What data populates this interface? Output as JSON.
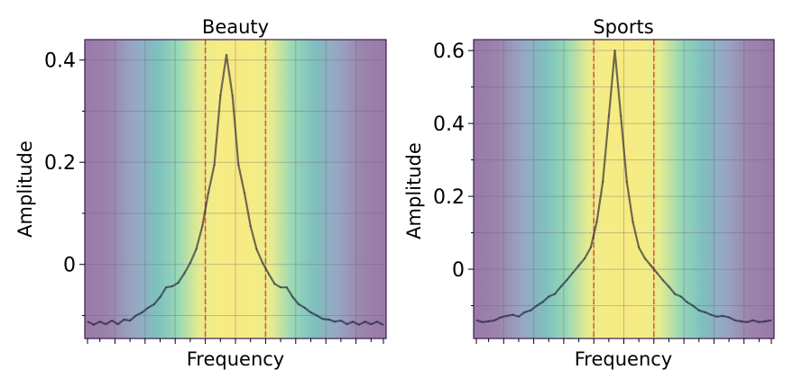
{
  "chart_data": [
    {
      "type": "line",
      "title": "Beauty",
      "xlabel": "Frequency",
      "ylabel": "Amplitude",
      "xlim": [
        -50,
        50
      ],
      "ylim": [
        -0.145,
        0.44
      ],
      "yticks": [
        0,
        0.2,
        0.4
      ],
      "ytick_labels": [
        "0",
        "0.2",
        "0.4"
      ],
      "grid": true,
      "background": "viridis-centered-gradient",
      "band_lines": [
        -10,
        10
      ],
      "x": [
        -49,
        -47,
        -45,
        -43,
        -41,
        -39,
        -37,
        -35,
        -33,
        -31,
        -29,
        -27,
        -25,
        -23,
        -21,
        -19,
        -17,
        -15,
        -13,
        -11,
        -9,
        -7,
        -5,
        -3,
        -1,
        1,
        3,
        5,
        7,
        9,
        11,
        13,
        15,
        17,
        19,
        21,
        23,
        25,
        27,
        29,
        31,
        33,
        35,
        37,
        39,
        41,
        43,
        45,
        47,
        49
      ],
      "values": [
        -0.112,
        -0.118,
        -0.112,
        -0.117,
        -0.11,
        -0.117,
        -0.108,
        -0.11,
        -0.1,
        -0.094,
        -0.085,
        -0.078,
        -0.064,
        -0.045,
        -0.043,
        -0.036,
        -0.018,
        0.003,
        0.03,
        0.075,
        0.14,
        0.195,
        0.33,
        0.41,
        0.33,
        0.195,
        0.14,
        0.075,
        0.03,
        0.003,
        -0.018,
        -0.038,
        -0.045,
        -0.045,
        -0.064,
        -0.078,
        -0.085,
        -0.094,
        -0.1,
        -0.107,
        -0.108,
        -0.112,
        -0.11,
        -0.117,
        -0.112,
        -0.118,
        -0.112,
        -0.117,
        -0.112,
        -0.118
      ]
    },
    {
      "type": "line",
      "title": "Sports",
      "xlabel": "Frequency",
      "ylabel": "Amplitude",
      "xlim": [
        -50,
        50
      ],
      "ylim": [
        -0.19,
        0.63
      ],
      "yticks": [
        0,
        0.2,
        0.4,
        0.6
      ],
      "ytick_labels": [
        "0",
        "0.2",
        "0.4",
        "0.6"
      ],
      "grid": true,
      "background": "viridis-centered-gradient",
      "band_lines": [
        -10,
        10
      ],
      "x": [
        -49,
        -47,
        -45,
        -43,
        -41,
        -39,
        -37,
        -35,
        -33,
        -31,
        -29,
        -27,
        -25,
        -23,
        -21,
        -19,
        -17,
        -15,
        -13,
        -11,
        -9,
        -7,
        -5,
        -3,
        -1,
        1,
        3,
        5,
        7,
        9,
        11,
        13,
        15,
        17,
        19,
        21,
        23,
        25,
        27,
        29,
        31,
        33,
        35,
        37,
        39,
        41,
        43,
        45,
        47,
        49
      ],
      "values": [
        -0.14,
        -0.145,
        -0.143,
        -0.14,
        -0.132,
        -0.128,
        -0.125,
        -0.13,
        -0.118,
        -0.113,
        -0.1,
        -0.09,
        -0.075,
        -0.068,
        -0.048,
        -0.03,
        -0.01,
        0.01,
        0.03,
        0.06,
        0.13,
        0.24,
        0.42,
        0.6,
        0.42,
        0.24,
        0.13,
        0.06,
        0.03,
        0.01,
        -0.01,
        -0.03,
        -0.048,
        -0.068,
        -0.075,
        -0.09,
        -0.1,
        -0.113,
        -0.118,
        -0.125,
        -0.13,
        -0.128,
        -0.132,
        -0.14,
        -0.143,
        -0.145,
        -0.14,
        -0.145,
        -0.143,
        -0.14
      ]
    }
  ]
}
